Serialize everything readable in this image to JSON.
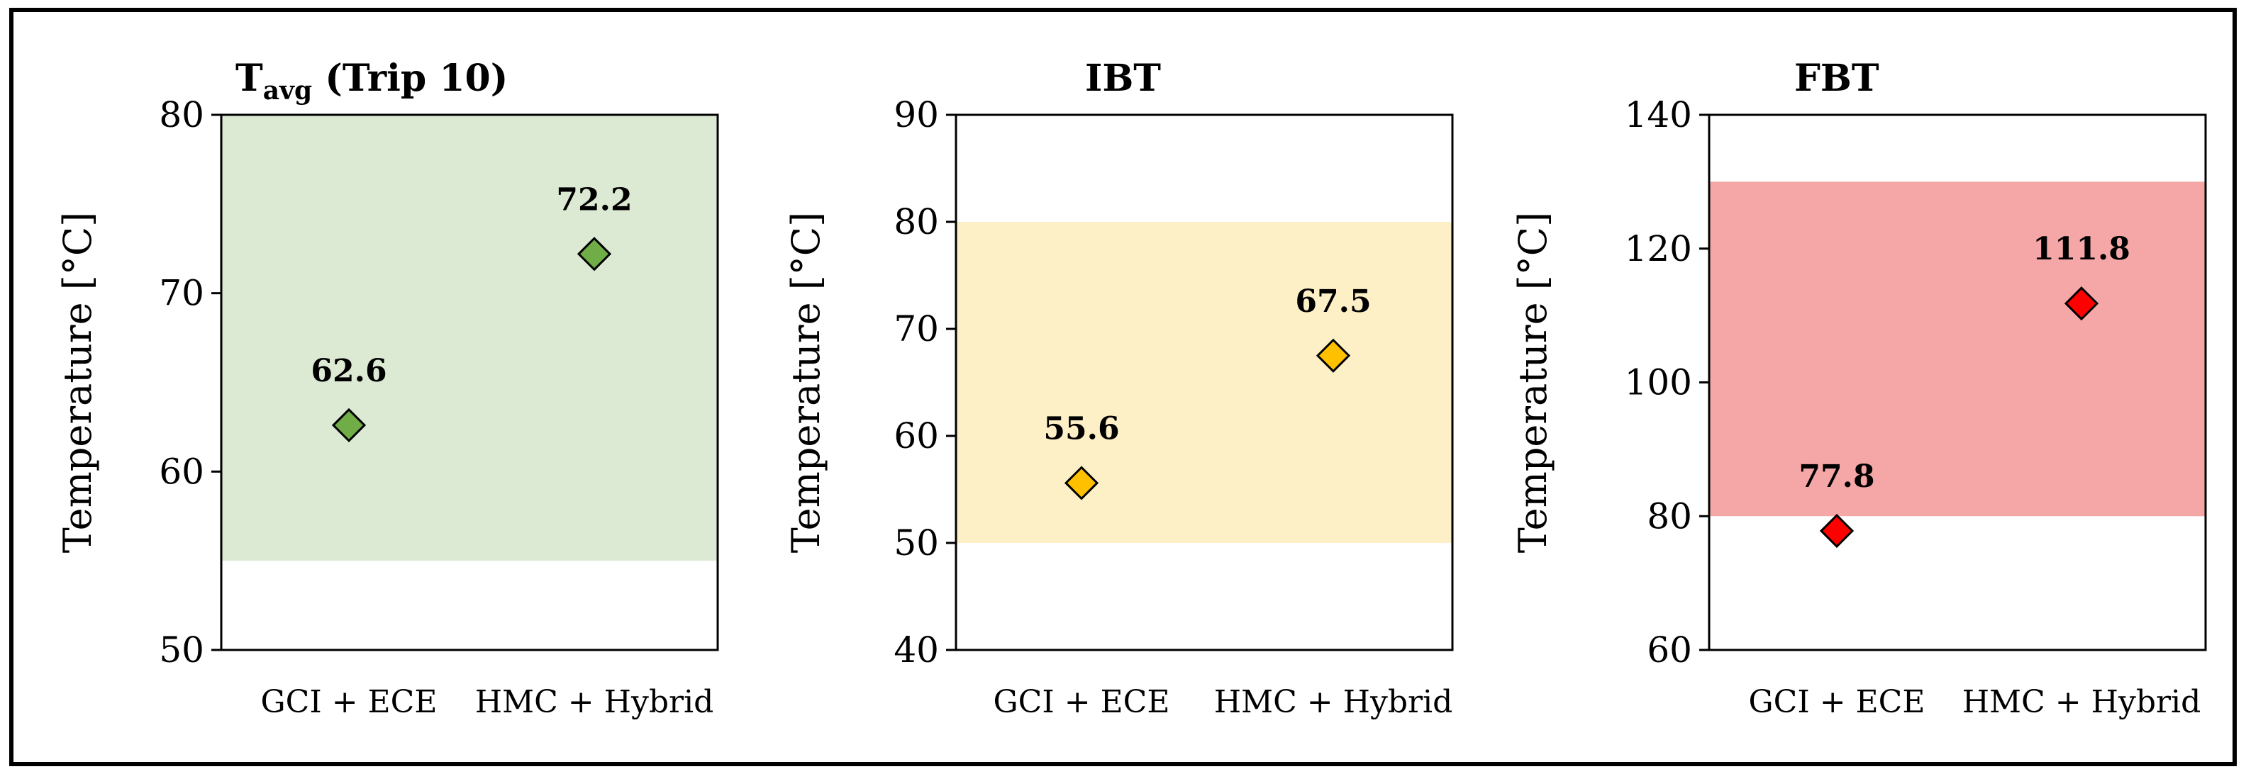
{
  "chart_data": [
    {
      "type": "scatter",
      "title": "Tavg (Trip 10)",
      "title_main": "T",
      "title_sub": "avg",
      "title_rest": " (Trip 10)",
      "ylabel": "Temperature [°C]",
      "categories": [
        "GCI + ECE",
        "HMC + Hybrid"
      ],
      "values": [
        62.6,
        72.2
      ],
      "data_labels": [
        "62.6",
        "72.2"
      ],
      "ylim": [
        50,
        80
      ],
      "yticks": [
        50,
        60,
        70,
        80
      ],
      "range_band": [
        55,
        80
      ],
      "band_color": "#DCEAD3",
      "marker_color": "#70AD47",
      "marker_shape": "diamond",
      "grid": false
    },
    {
      "type": "scatter",
      "title": "IBT",
      "ylabel": "Temperature [°C]",
      "categories": [
        "GCI + ECE",
        "HMC + Hybrid"
      ],
      "values": [
        55.6,
        67.5
      ],
      "data_labels": [
        "55.6",
        "67.5"
      ],
      "ylim": [
        40,
        90
      ],
      "yticks": [
        40,
        50,
        60,
        70,
        80,
        90
      ],
      "range_band": [
        50,
        80
      ],
      "band_color": "#FDF0C6",
      "marker_color": "#FFC000",
      "marker_shape": "diamond",
      "grid": false
    },
    {
      "type": "scatter",
      "title": "FBT",
      "ylabel": "Temperature [°C]",
      "categories": [
        "GCI + ECE",
        "HMC + Hybrid"
      ],
      "values": [
        77.8,
        111.8
      ],
      "data_labels": [
        "77.8",
        "111.8"
      ],
      "ylim": [
        60,
        140
      ],
      "yticks": [
        60,
        80,
        100,
        120,
        140
      ],
      "range_band": [
        80,
        130
      ],
      "band_color": "#F5A7A7",
      "marker_color": "#FF0000",
      "marker_shape": "diamond",
      "grid": false
    }
  ]
}
